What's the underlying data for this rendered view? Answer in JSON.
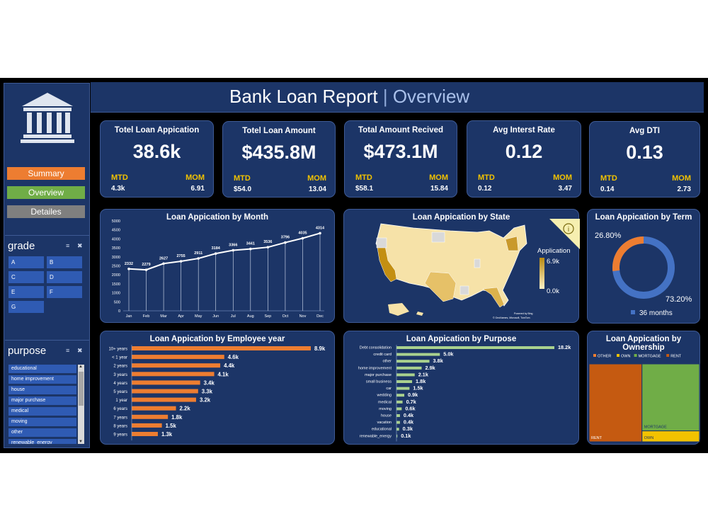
{
  "header": {
    "title": "Bank Loan Report",
    "separator": "|",
    "subtitle": "Overview"
  },
  "nav": {
    "summary": {
      "label": "Summary",
      "color": "#ed7d31"
    },
    "overview": {
      "label": "Overview",
      "color": "#70ad47"
    },
    "details": {
      "label": "Detailes",
      "color": "#7f7f7f"
    }
  },
  "grade_slicer": {
    "title": "grade",
    "items": [
      "A",
      "B",
      "C",
      "D",
      "E",
      "F",
      "G"
    ]
  },
  "purpose_slicer": {
    "title": "purpose",
    "items": [
      "educational",
      "home improvement",
      "house",
      "major purchase",
      "medical",
      "moving",
      "other",
      "renewable_energy"
    ]
  },
  "kpis": [
    {
      "title": "Totel Loan Appication",
      "value": "38.6k",
      "mtd_label": "MTD",
      "mtd": "4.3k",
      "mom_label": "MOM",
      "mom": "6.91"
    },
    {
      "title": "Totel Loan Amount",
      "value": "$435.8M",
      "mtd_label": "MTD",
      "mtd": "$54.0",
      "mom_label": "MOM",
      "mom": "13.04"
    },
    {
      "title": "Total Amount Recived",
      "value": "$473.1M",
      "mtd_label": "MTD",
      "mtd": "$58.1",
      "mom_label": "MOM",
      "mom": "15.84"
    },
    {
      "title": "Avg Interst Rate",
      "value": "0.12",
      "mtd_label": "MTD",
      "mtd": "0.12",
      "mom_label": "MOM",
      "mom": "3.47"
    },
    {
      "title": "Avg DTI",
      "value": "0.13",
      "mtd_label": "MTD",
      "mtd": "0.14",
      "mom_label": "MOM",
      "mom": "2.73"
    }
  ],
  "state_map": {
    "title": "Loan Appication by State",
    "legend_title": "Application",
    "legend_max": "6.9k",
    "legend_min": "0.0k",
    "credit_line1": "Powered by Bing",
    "credit_line2": "© GeoNames, Microsoft, TomTom",
    "colors": [
      "#fdf1c6",
      "#b88a12"
    ]
  },
  "colors": {
    "panel": "#1c3567",
    "border": "#3e5a95",
    "orange": "#ed7d31",
    "green": "#a9d18e",
    "blue": "#4472c4",
    "gold": "#f2c200"
  },
  "chart_data": [
    {
      "type": "line",
      "title": "Loan Appication by Month",
      "categories": [
        "Jan",
        "Feb",
        "Mar",
        "Apr",
        "May",
        "Jun",
        "Jul",
        "Aug",
        "Sep",
        "Oct",
        "Nov",
        "Dec"
      ],
      "values": [
        2332,
        2279,
        2627,
        2755,
        2911,
        3184,
        3366,
        3441,
        3536,
        3796,
        4035,
        4314
      ],
      "yticks": [
        0,
        500,
        1000,
        1500,
        2000,
        2500,
        3000,
        3500,
        4000,
        4500,
        5000
      ],
      "ylim": [
        0,
        5000
      ],
      "xlabel": "",
      "ylabel": ""
    },
    {
      "type": "pie",
      "title": "Loan Appication by Term",
      "slices": [
        {
          "name": "36 months",
          "value": 73.2,
          "label": "73.20%"
        },
        {
          "value": 26.8,
          "label": "26.80%"
        }
      ],
      "legend": [
        "36 months"
      ],
      "colors": [
        "#4472c4",
        "#ed7d31"
      ]
    },
    {
      "type": "bar",
      "title": "Loan Appication by Employee year",
      "categories": [
        "10+ years",
        "< 1 year",
        "2 years",
        "3 years",
        "4 years",
        "5 years",
        "1 year",
        "6 years",
        "7 years",
        "8 years",
        "9 years"
      ],
      "values": [
        8.9,
        4.6,
        4.4,
        4.1,
        3.4,
        3.3,
        3.2,
        2.2,
        1.8,
        1.5,
        1.3
      ],
      "labels": [
        "8.9k",
        "4.6k",
        "4.4k",
        "4.1k",
        "3.4k",
        "3.3k",
        "3.2k",
        "2.2k",
        "1.8k",
        "1.5k",
        "1.3k"
      ],
      "xlim": [
        0,
        8.9
      ],
      "color": "#ed7d31"
    },
    {
      "type": "bar",
      "title": "Loan Appication by Purpose",
      "categories": [
        "Debt consolidation",
        "credit card",
        "other",
        "home improvement",
        "major purchase",
        "small business",
        "car",
        "wedding",
        "medical",
        "moving",
        "house",
        "vacation",
        "educational",
        "renewable_energy"
      ],
      "values": [
        18.2,
        5.0,
        3.8,
        2.9,
        2.1,
        1.8,
        1.5,
        0.9,
        0.7,
        0.6,
        0.4,
        0.4,
        0.3,
        0.1
      ],
      "labels": [
        "18.2k",
        "5.0k",
        "3.8k",
        "2.9k",
        "2.1k",
        "1.8k",
        "1.5k",
        "0.9k",
        "0.7k",
        "0.6k",
        "0.4k",
        "0.4k",
        "0.3k",
        "0.1k"
      ],
      "xlim": [
        0,
        18.2
      ],
      "color": "#a9d18e"
    },
    {
      "type": "treemap",
      "title": "Loan Appication by Ownership",
      "legend": [
        {
          "name": "OTHER",
          "color": "#ed7d31"
        },
        {
          "name": "OWN",
          "color": "#f2c200"
        },
        {
          "name": "MORTGAGE",
          "color": "#70ad47"
        },
        {
          "name": "RENT",
          "color": "#c55a11"
        }
      ],
      "items": [
        {
          "name": "RENT",
          "value": 18.4,
          "color": "#c55a11"
        },
        {
          "name": "MORTGAGE",
          "value": 17.2,
          "color": "#70ad47"
        },
        {
          "name": "OWN",
          "value": 2.8,
          "color": "#f2c200"
        }
      ]
    }
  ]
}
